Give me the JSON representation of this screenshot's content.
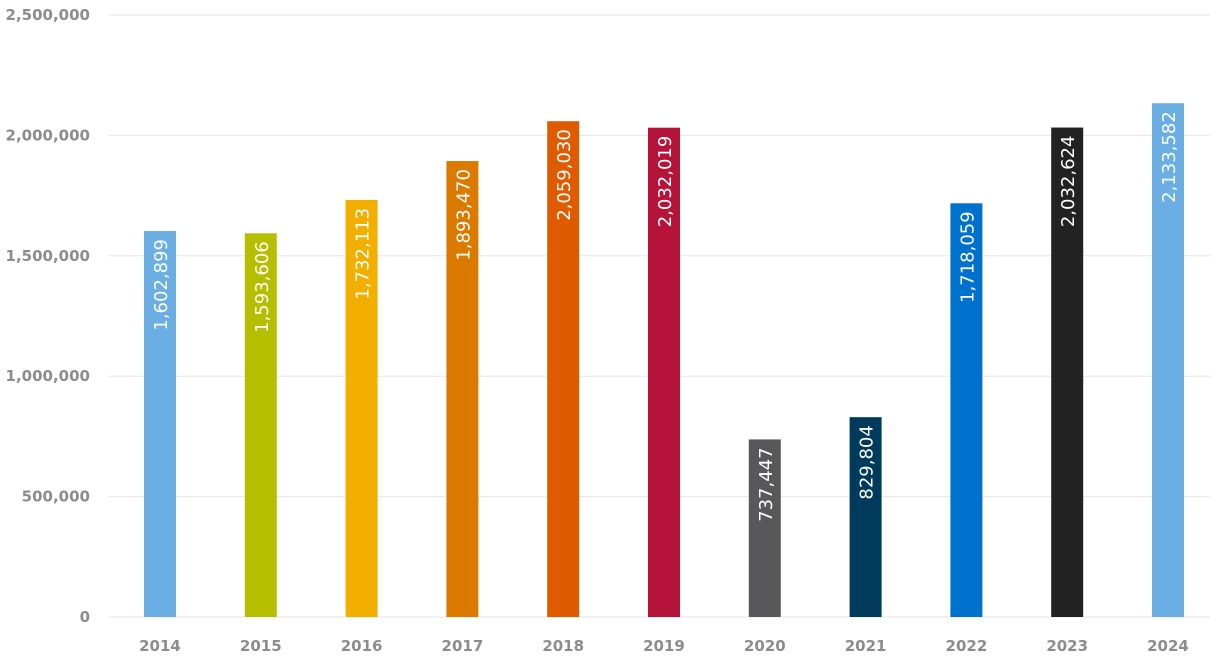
{
  "chart_data": {
    "type": "bar",
    "categories": [
      "2014",
      "2015",
      "2016",
      "2017",
      "2018",
      "2019",
      "2020",
      "2021",
      "2022",
      "2023",
      "2024"
    ],
    "values": [
      1602899,
      1593606,
      1732113,
      1893470,
      2059030,
      2032019,
      737447,
      829804,
      1718059,
      2032624,
      2133582
    ],
    "value_labels": [
      "1,602,899",
      "1,593,606",
      "1,732,113",
      "1,893,470",
      "2,059,030",
      "2,032,019",
      "737,447",
      "829,804",
      "1,718,059",
      "2,032,624",
      "2,133,582"
    ],
    "colors": [
      "#6aaee4",
      "#b5be00",
      "#f2af00",
      "#dc7a00",
      "#e05a00",
      "#b5133a",
      "#58585a",
      "#003a5c",
      "#0072ce",
      "#222222",
      "#6aaee4"
    ],
    "ylim": [
      0,
      2500000
    ],
    "yticks": [
      0,
      500000,
      1000000,
      1500000,
      2000000,
      2500000
    ],
    "ytick_labels": [
      "0",
      "500,000",
      "1,000,000",
      "1,500,000",
      "2,000,000",
      "2,500,000"
    ],
    "grid": true,
    "legend": "none"
  }
}
